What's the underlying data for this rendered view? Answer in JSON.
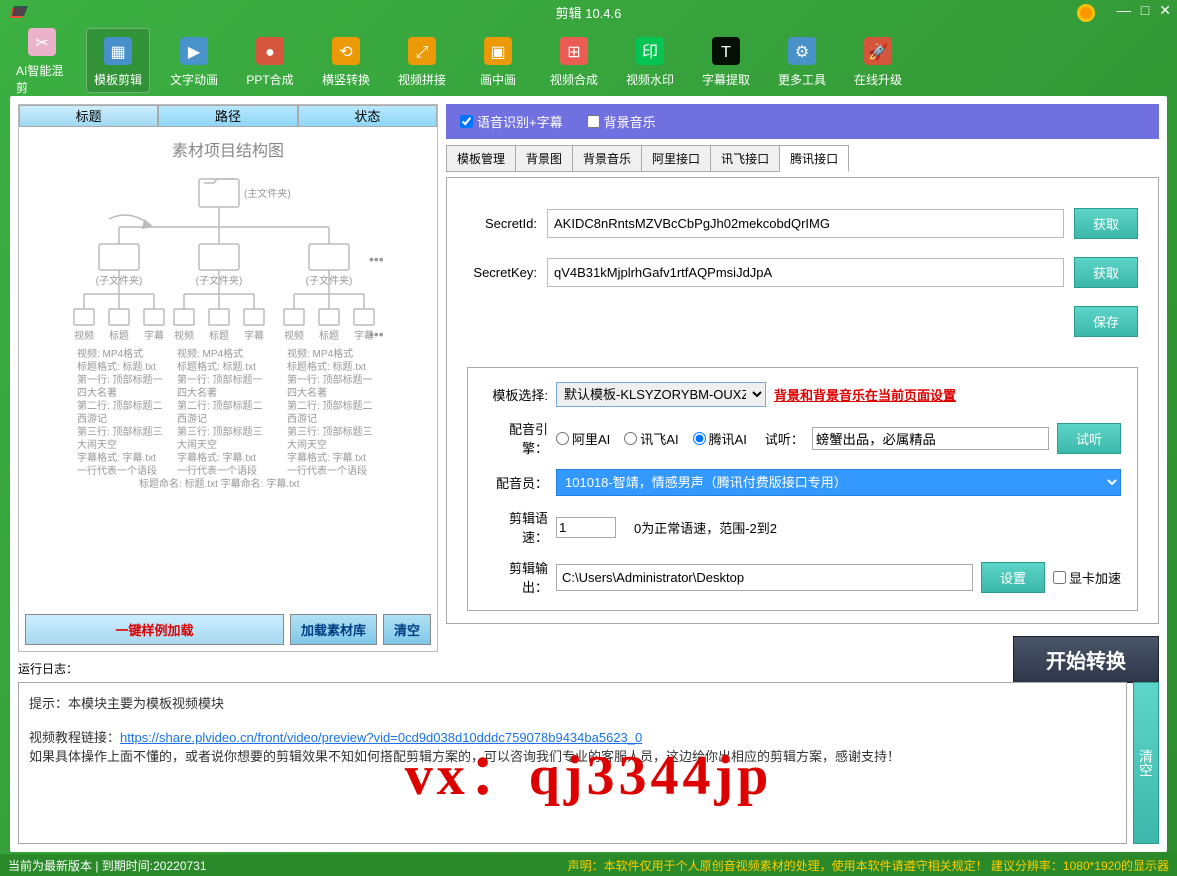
{
  "title": "剪辑 10.4.6",
  "toolbar": [
    {
      "label": "AI智能混剪",
      "color": "#ffb3d9"
    },
    {
      "label": "模板剪辑",
      "color": "#4a90d9",
      "active": true
    },
    {
      "label": "文字动画",
      "color": "#4a90d9"
    },
    {
      "label": "PPT合成",
      "color": "#e74c3c"
    },
    {
      "label": "横竖转换",
      "color": "#ff9800"
    },
    {
      "label": "视频拼接",
      "color": "#ff9800"
    },
    {
      "label": "画中画",
      "color": "#ff9800"
    },
    {
      "label": "视频合成",
      "color": "#ff5555"
    },
    {
      "label": "视频水印",
      "color": "#00c853"
    },
    {
      "label": "字幕提取",
      "color": "#000"
    },
    {
      "label": "更多工具",
      "color": "#4a90d9"
    },
    {
      "label": "在线升级",
      "color": "#e74c3c"
    }
  ],
  "lp_headers": {
    "title": "标题",
    "path": "路径",
    "status": "状态"
  },
  "structure_title": "素材项目结构图",
  "struct": {
    "main": "(主文件夹)",
    "sub": "(子文件夹)",
    "items": [
      "视频",
      "标题",
      "字幕"
    ],
    "desc": [
      "视频: MP4格式",
      "标题格式: 标题.txt",
      "第一行: 顶部标题一",
      "四大名著",
      "第二行: 顶部标题二",
      "西游记",
      "第三行: 顶部标题三",
      "大闹天空",
      "字幕格式: 字幕.txt",
      "一行代表一个语段",
      "标题命名: 标题.txt 字幕命名: 字幕.txt"
    ]
  },
  "lp_btns": {
    "sample": "一键样例加载",
    "load": "加载素材库",
    "clear": "清空"
  },
  "options": {
    "voice": "语音识别+字幕",
    "bgm": "背景音乐"
  },
  "tabs": [
    "模板管理",
    "背景图",
    "背景音乐",
    "阿里接口",
    "讯飞接口",
    "腾讯接口"
  ],
  "secret": {
    "id_label": "SecretId:",
    "id_value": "AKIDC8nRntsMZVBcCbPgJh02mekcobdQrIMG",
    "key_label": "SecretKey:",
    "key_value": "qV4B31kMjplrhGafv1rtfAQPmsiJdJpA",
    "get": "获取",
    "save": "保存"
  },
  "config": {
    "tpl_label": "模板选择:",
    "tpl_value": "默认模板-KLSYZORYBM-OUXZQVD",
    "tpl_note": "背景和背景音乐在当前页面设置",
    "engine_label": "配音引擎：",
    "engines": [
      "阿里AI",
      "讯飞AI",
      "腾讯AI"
    ],
    "preview_label": "试听：",
    "preview_text": "螃蟹出品，必属精品",
    "preview_btn": "试听",
    "voice_label": "配音员：",
    "voice_value": "101018-智靖，情感男声（腾讯付费版接口专用）",
    "speed_label": "剪辑语速：",
    "speed_value": "1",
    "speed_note": "0为正常语速，范围-2到2",
    "out_label": "剪辑输出：",
    "out_value": "C:\\Users\\Administrator\\Desktop",
    "set": "设置",
    "gpu": "显卡加速"
  },
  "start": "开始转换",
  "log": {
    "label": "运行日志：",
    "tip": "提示：本模块主要为模板视频模块",
    "link_label": "视频教程链接：",
    "link": "https://share.plvideo.cn/front/video/preview?vid=0cd9d038d10dddc759078b9434ba5623_0",
    "note": "如果具体操作上面不懂的，或者说你想要的剪辑效果不知如何搭配剪辑方案的，可以咨询我们专业的客服人员，这边给你出相应的剪辑方案，感谢支持！",
    "clear": "清空"
  },
  "watermark": "vx：qj3344jp",
  "status": {
    "left": "当前为最新版本 | 到期时间:20220731",
    "right": "声明：本软件仅用于个人原创音视频素材的处理，使用本软件请遵守相关规定！  建议分辨率：1080*1920的显示器"
  }
}
